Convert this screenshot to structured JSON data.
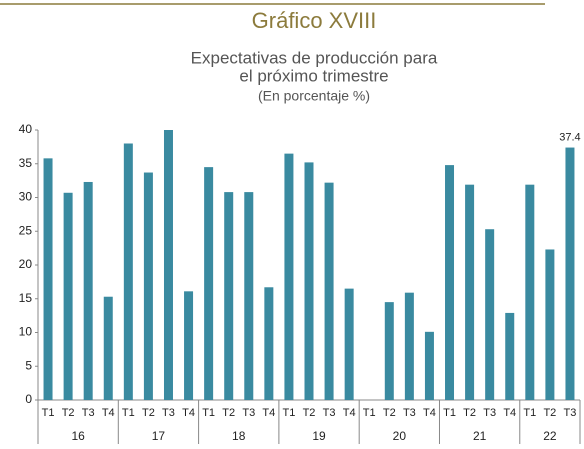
{
  "chart_data": {
    "type": "bar",
    "title": "Gráfico XVIII",
    "subtitle": [
      "Expectativas de producción para",
      "el próximo trimestre",
      "(En porcentaje %)"
    ],
    "color": "#3a8aa0",
    "ylim": [
      0,
      40
    ],
    "yticks": [
      0,
      5,
      10,
      15,
      20,
      25,
      30,
      35,
      40
    ],
    "groups": [
      {
        "label": "16",
        "categories": [
          "T1",
          "T2",
          "T3",
          "T4"
        ],
        "values": [
          35.8,
          30.7,
          32.3,
          15.3
        ]
      },
      {
        "label": "17",
        "categories": [
          "T1",
          "T2",
          "T3",
          "T4"
        ],
        "values": [
          38,
          33.7,
          40,
          16.1
        ]
      },
      {
        "label": "18",
        "categories": [
          "T1",
          "T2",
          "T3",
          "T4"
        ],
        "values": [
          34.5,
          30.8,
          30.8,
          16.7
        ]
      },
      {
        "label": "19",
        "categories": [
          "T1",
          "T2",
          "T3",
          "T4"
        ],
        "values": [
          36.5,
          35.2,
          32.2,
          16.5
        ]
      },
      {
        "label": "20",
        "categories": [
          "T1",
          "T2",
          "T3",
          "T4"
        ],
        "values": [
          null,
          14.5,
          15.9,
          10.1
        ]
      },
      {
        "label": "21",
        "categories": [
          "T1",
          "T2",
          "T3",
          "T4"
        ],
        "values": [
          34.8,
          31.9,
          25.3,
          12.9
        ]
      },
      {
        "label": "22",
        "categories": [
          "T1",
          "T2",
          "T3"
        ],
        "values": [
          31.9,
          22.3,
          37.4
        ],
        "value_labels": [
          null,
          null,
          "37.4"
        ]
      }
    ]
  }
}
